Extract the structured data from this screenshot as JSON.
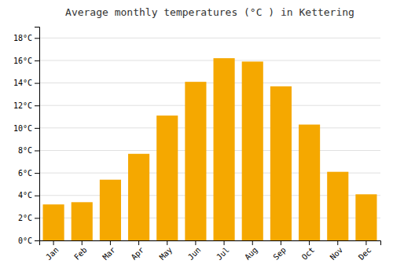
{
  "chart_data": {
    "type": "bar",
    "title": "Average monthly temperatures (°C ) in Kettering",
    "categories": [
      "Jan",
      "Feb",
      "Mar",
      "Apr",
      "May",
      "Jun",
      "Jul",
      "Aug",
      "Sep",
      "Oct",
      "Nov",
      "Dec"
    ],
    "values": [
      3.2,
      3.4,
      5.4,
      7.7,
      11.1,
      14.1,
      16.2,
      15.9,
      13.7,
      10.3,
      6.1,
      4.1
    ],
    "color": "#F5A800",
    "ylim": [
      0,
      19.0
    ],
    "yticks": [
      {
        "value": 0,
        "label": "0°C"
      },
      {
        "value": 2,
        "label": "2°C"
      },
      {
        "value": 4,
        "label": "4°C"
      },
      {
        "value": 6,
        "label": "6°C"
      },
      {
        "value": 8,
        "label": "8°C"
      },
      {
        "value": 10,
        "label": "10°C"
      },
      {
        "value": 12,
        "label": "12°C"
      },
      {
        "value": 14,
        "label": "14°C"
      },
      {
        "value": 16,
        "label": "16°C"
      },
      {
        "value": 18,
        "label": "18°C"
      }
    ],
    "grid": true
  }
}
